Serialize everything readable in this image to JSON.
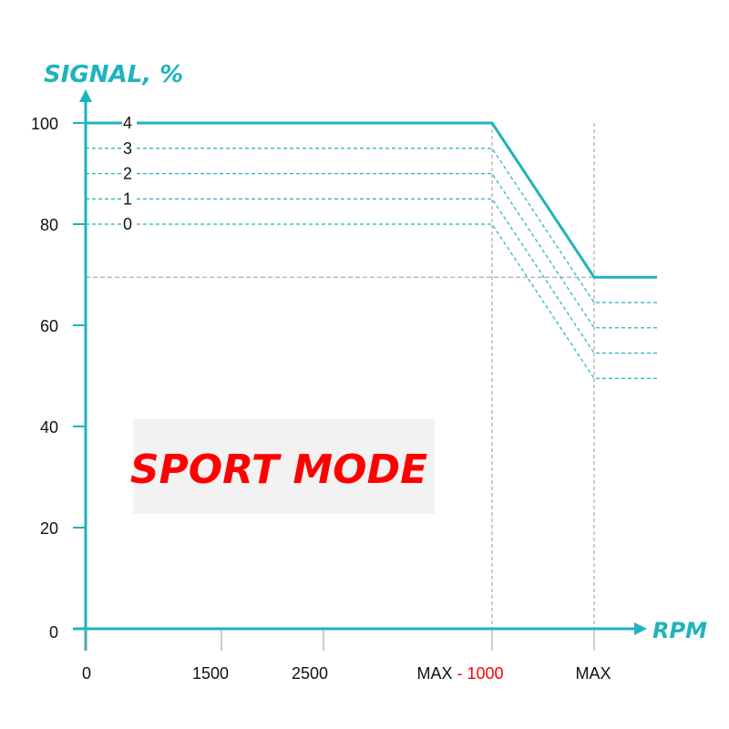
{
  "chart_data": {
    "type": "line",
    "title": "",
    "ylabel": "SIGNAL, %",
    "xlabel": "RPM",
    "ylim": [
      0,
      100
    ],
    "yticks": [
      0,
      20,
      40,
      60,
      80,
      100
    ],
    "xticks": [
      {
        "parts": [
          {
            "text": "0",
            "color": "#111111"
          }
        ]
      },
      {
        "parts": [
          {
            "text": "1500",
            "color": "#111111"
          }
        ]
      },
      {
        "parts": [
          {
            "text": "2500",
            "color": "#111111"
          }
        ]
      },
      {
        "parts": [
          {
            "text": "MAX ",
            "color": "#111111"
          },
          {
            "text": "- 1000",
            "color": "#ff0000"
          }
        ]
      },
      {
        "parts": [
          {
            "text": "MAX",
            "color": "#111111"
          }
        ]
      }
    ],
    "x_points": [
      "0",
      "MAX - 1000",
      "MAX",
      "MAX+"
    ],
    "series": [
      {
        "name": "4",
        "style": "solid",
        "values": [
          100,
          100,
          69.5,
          69.5
        ]
      },
      {
        "name": "3",
        "style": "dashed",
        "values": [
          95,
          95,
          64.5,
          64.5
        ]
      },
      {
        "name": "2",
        "style": "dashed",
        "values": [
          90,
          90,
          59.5,
          59.5
        ]
      },
      {
        "name": "1",
        "style": "dashed",
        "values": [
          85,
          85,
          54.5,
          54.5
        ]
      },
      {
        "name": "0",
        "style": "dashed",
        "values": [
          80,
          80,
          49.5,
          49.5
        ]
      }
    ],
    "reference_level": 69.5,
    "annotation": "SPORT MODE",
    "grid": false
  },
  "colors": {
    "axis": "#1fb3bd",
    "line": "#1fb3bd",
    "mode_text": "#ff0000",
    "mode_box": "#f2f2f2",
    "ref_dash": "#999999"
  }
}
